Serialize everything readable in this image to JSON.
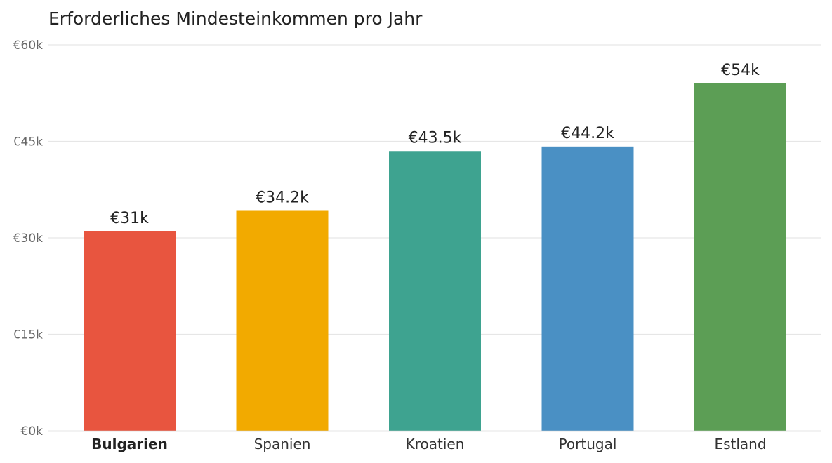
{
  "chart_data": {
    "type": "bar",
    "title": "Erforderliches Mindesteinkommen pro Jahr",
    "xlabel": "",
    "ylabel": "",
    "categories": [
      "Bulgarien",
      "Spanien",
      "Kroatien",
      "Portugal",
      "Estland"
    ],
    "highlight_category": "Bulgarien",
    "values": [
      31000,
      34200,
      43500,
      44200,
      54000
    ],
    "data_labels": [
      "€31k",
      "€34.2k",
      "€43.5k",
      "€44.2k",
      "€54k"
    ],
    "colors": [
      "#e8553f",
      "#f2aa00",
      "#3ea390",
      "#4a90c4",
      "#5c9e55"
    ],
    "ylim": [
      0,
      60000
    ],
    "yticks": [
      0,
      15000,
      30000,
      45000,
      60000
    ],
    "ytick_labels": [
      "€0k",
      "€15k",
      "€30k",
      "€45k",
      "€60k"
    ],
    "grid": true,
    "legend": "none"
  }
}
